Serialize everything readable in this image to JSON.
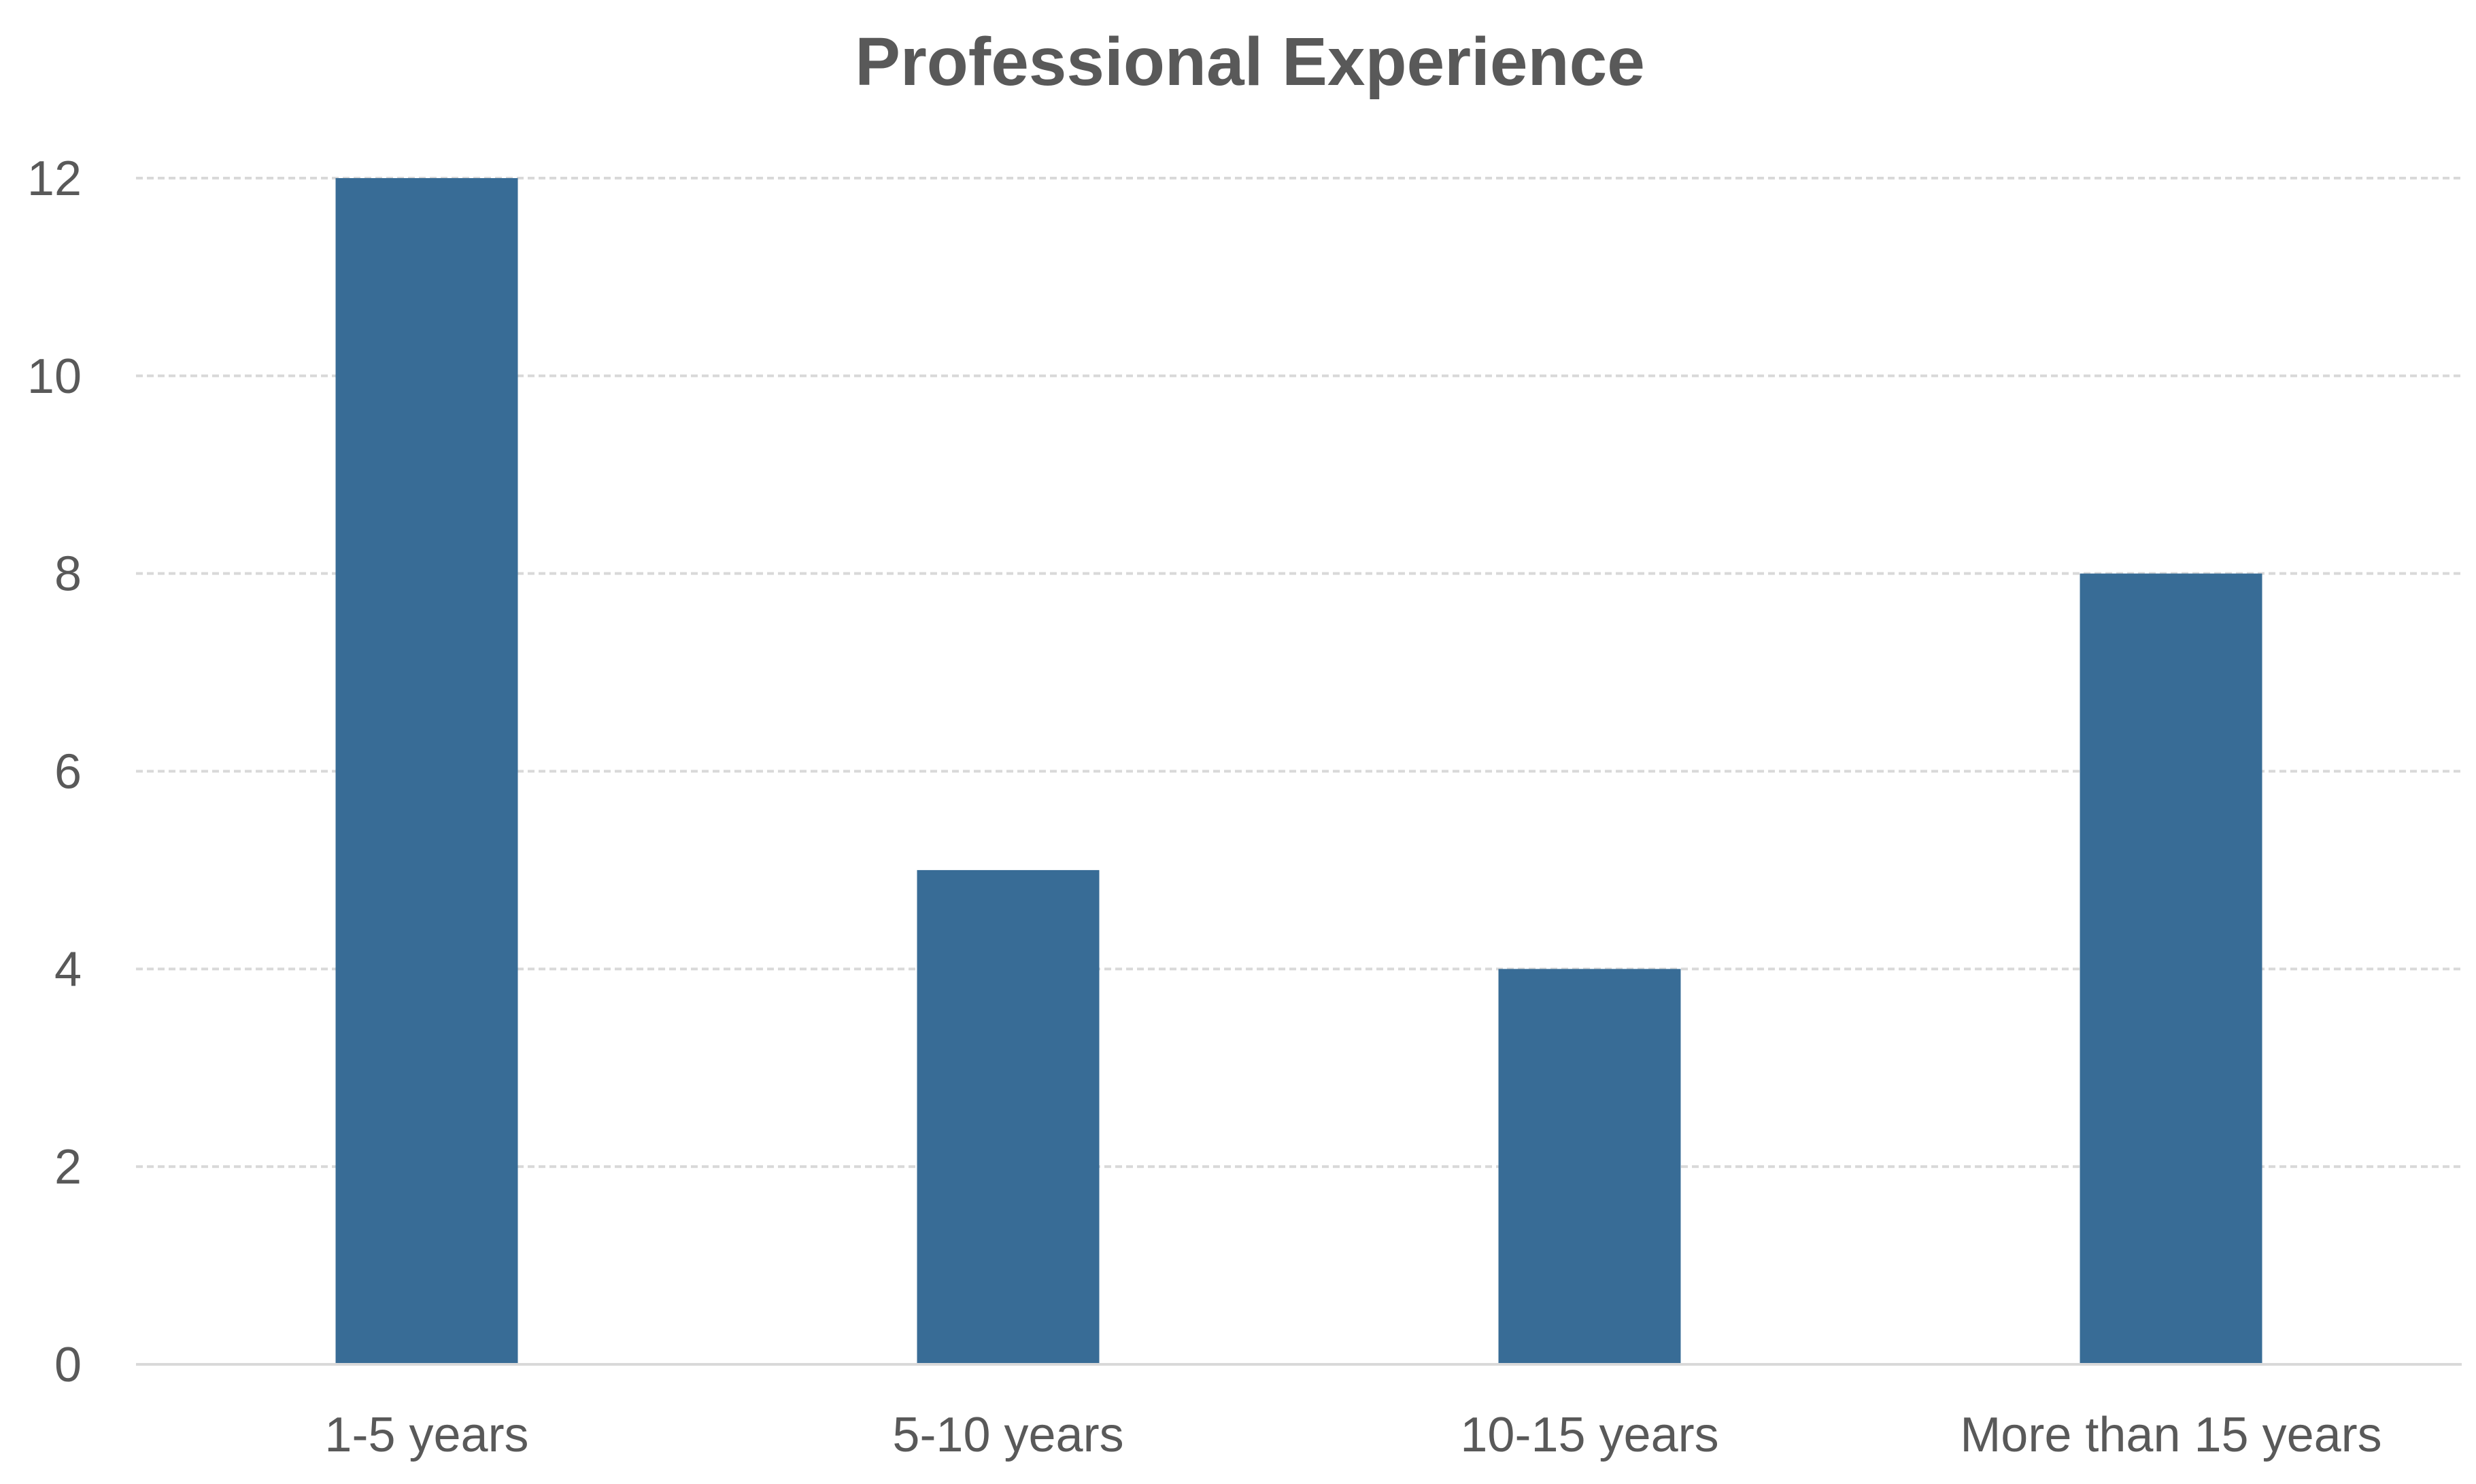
{
  "colors": {
    "bar": "#386C96",
    "grid": "#D9D9D9",
    "axis": "#D9D9D9",
    "text": "#595959",
    "background": "#FFFFFF"
  },
  "chart_data": {
    "type": "bar",
    "title": "Professional Experience",
    "xlabel": "",
    "ylabel": "",
    "categories": [
      "1-5 years",
      "5-10 years",
      "10-15 years",
      "More than 15 years"
    ],
    "values": [
      12,
      5,
      4,
      8
    ],
    "ylim": [
      0,
      12
    ],
    "yticks": [
      0,
      2,
      4,
      6,
      8,
      10,
      12
    ],
    "ytick_labels": [
      "0",
      "2",
      "4",
      "6",
      "8",
      "10",
      "12"
    ],
    "grid": true,
    "grid_style": "dashed",
    "legend": "none"
  }
}
